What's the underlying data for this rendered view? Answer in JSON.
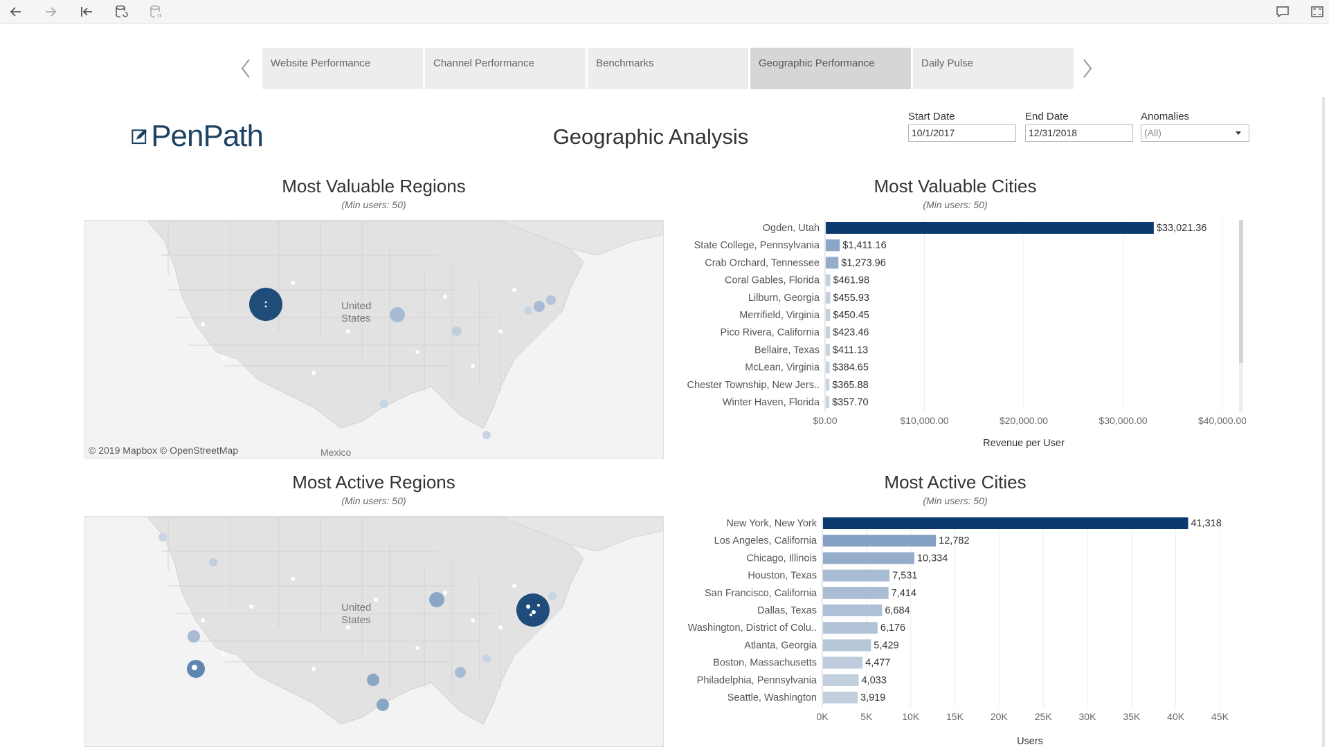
{
  "toolbar": {
    "left_icons": [
      "back-arrow-icon",
      "forward-arrow-icon",
      "revert-icon",
      "refresh-data-icon",
      "pause-updates-icon"
    ],
    "right_icons": [
      "comment-icon",
      "fullscreen-icon"
    ]
  },
  "tabs": [
    {
      "label": "Website Performance",
      "active": false
    },
    {
      "label": "Channel Performance",
      "active": false
    },
    {
      "label": "Benchmarks",
      "active": false
    },
    {
      "label": "Geographic Performance",
      "active": true
    },
    {
      "label": "Daily Pulse",
      "active": false
    }
  ],
  "header": {
    "logo_text": "PenPath",
    "title": "Geographic Analysis"
  },
  "filters": {
    "start_label": "Start Date",
    "start_value": "10/1/2017",
    "end_label": "End Date",
    "end_value": "12/31/2018",
    "anomalies_label": "Anomalies",
    "anomalies_value": "(All)"
  },
  "maps": {
    "valuable_title": "Most Valuable Regions",
    "valuable_subtitle": "(Min users: 50)",
    "active_title": "Most Active Regions",
    "active_subtitle": "(Min users: 50)",
    "attribution": "© 2019 Mapbox  © OpenStreetMap",
    "label_us": "United",
    "label_us2": "States",
    "label_mexico": "Mexico"
  },
  "colors": {
    "bar_dark": "#0b3b6e",
    "bar_light": "#e4e8ee",
    "map_bubble_dark": "#1f4c7a",
    "map_bubble_light": "#a7bbd4"
  },
  "chart_data": [
    {
      "type": "bar",
      "orientation": "horizontal",
      "title": "Most Valuable Cities",
      "subtitle": "(Min users: 50)",
      "xlabel": "Revenue per User",
      "xlim": [
        0,
        40000
      ],
      "ticks": [
        "$0.00",
        "$10,000.00",
        "$20,000.00",
        "$30,000.00",
        "$40,000.00"
      ],
      "tick_values": [
        0,
        10000,
        20000,
        30000,
        40000
      ],
      "categories": [
        "Ogden, Utah",
        "State College, Pennsylvania",
        "Crab Orchard, Tennessee",
        "Coral Gables, Florida",
        "Lilburn, Georgia",
        "Merrifield, Virginia",
        "Pico Rivera, California",
        "Bellaire, Texas",
        "McLean, Virginia",
        "Chester Township, New Jers..",
        "Winter Haven, Florida"
      ],
      "values": [
        33021.36,
        1411.16,
        1273.96,
        461.98,
        455.93,
        450.45,
        423.46,
        411.13,
        384.65,
        365.88,
        357.7
      ],
      "labels": [
        "$33,021.36",
        "$1,411.16",
        "$1,273.96",
        "$461.98",
        "$455.93",
        "$450.45",
        "$423.46",
        "$411.13",
        "$384.65",
        "$365.88",
        "$357.70"
      ],
      "grid": true
    },
    {
      "type": "bar",
      "orientation": "horizontal",
      "title": "Most Active Cities",
      "subtitle": "(Min users: 50)",
      "xlabel": "Users",
      "xlim": [
        0,
        47000
      ],
      "ticks": [
        "0K",
        "5K",
        "10K",
        "15K",
        "20K",
        "25K",
        "30K",
        "35K",
        "40K",
        "45K"
      ],
      "tick_values": [
        0,
        5000,
        10000,
        15000,
        20000,
        25000,
        30000,
        35000,
        40000,
        45000
      ],
      "categories": [
        "New York, New York",
        "Los Angeles, California",
        "Chicago, Illinois",
        "Houston, Texas",
        "San Francisco, California",
        "Dallas, Texas",
        "Washington, District of Colu..",
        "Atlanta, Georgia",
        "Boston, Massachusetts",
        "Philadelphia, Pennsylvania",
        "Seattle, Washington"
      ],
      "values": [
        41318,
        12782,
        10334,
        7531,
        7414,
        6684,
        6176,
        5429,
        4477,
        4033,
        3919
      ],
      "labels": [
        "41,318",
        "12,782",
        "10,334",
        "7,531",
        "7,414",
        "6,684",
        "6,176",
        "5,429",
        "4,477",
        "4,033",
        "3,919"
      ],
      "grid": true
    }
  ]
}
